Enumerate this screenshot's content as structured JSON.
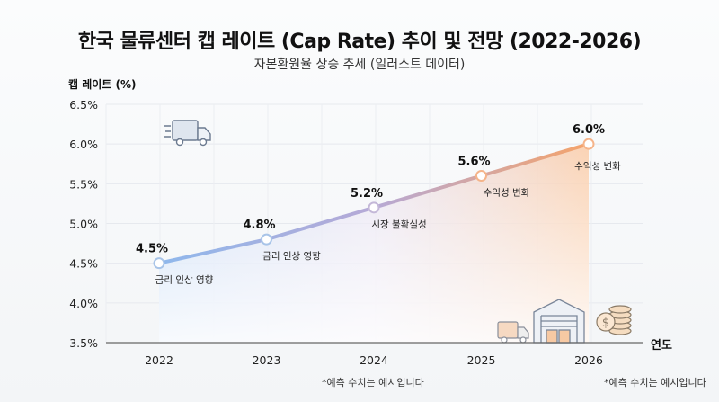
{
  "chart_data": {
    "type": "line",
    "title": "한국 물류센터 캡 레이트 (Cap Rate) 추이 및 전망 (2022-2026)",
    "subtitle": "자본환원율 상승 추세 (일러스트 데이터)",
    "ylabel": "캡 레이트 (%)",
    "xlabel": "연도",
    "categories": [
      "2022",
      "2023",
      "2024",
      "2025",
      "2026"
    ],
    "values": [
      4.5,
      4.8,
      5.2,
      5.6,
      6.0
    ],
    "data_labels": [
      "4.5%",
      "4.8%",
      "5.2%",
      "5.6%",
      "6.0%"
    ],
    "annotations": [
      "금리 인상 영향",
      "금리 인상 영향",
      "시장 불확실성",
      "수익성 변화",
      "수익성 변화"
    ],
    "ylim": [
      3.5,
      6.5
    ],
    "yticks": [
      "3.5%",
      "4.0%",
      "4.5%",
      "5.0%",
      "5.5%",
      "6.0%",
      "6.5%"
    ],
    "grid": true,
    "line_colors": [
      "#8fb8ec",
      "#f5a36a"
    ]
  },
  "notes": [
    "*예측 수치는 예시입니다",
    "*예측 수치는 예시입니다"
  ],
  "icons": [
    "delivery-truck-icon",
    "warehouse-icon",
    "coins-icon"
  ]
}
